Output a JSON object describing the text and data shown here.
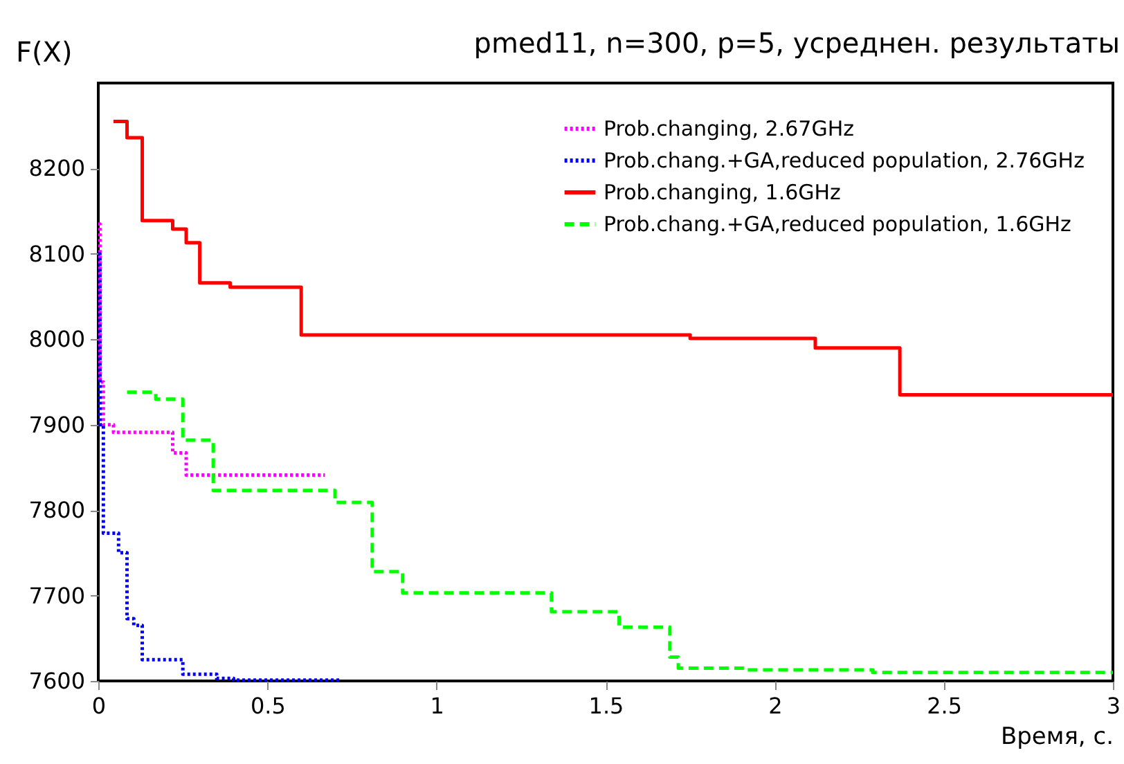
{
  "chart_data": {
    "type": "step",
    "title": "pmed11, n=300, p=5, усреднен. результаты",
    "xlabel": "Время, с.",
    "ylabel": "F(X)",
    "xlim": [
      0,
      3
    ],
    "ylim": [
      7600,
      8300
    ],
    "xticks": [
      0,
      0.5,
      1,
      1.5,
      2,
      2.5,
      3
    ],
    "yticks": [
      7600,
      7700,
      7800,
      7900,
      8000,
      8100,
      8200
    ],
    "grid": false,
    "legend": "top right",
    "series": [
      {
        "name": "Prob.changing, 2.67GHz",
        "color": "#ff00ff",
        "line_style": "dotted",
        "x": [
          0,
          0.005,
          0.015,
          0.045,
          0.22,
          0.26,
          0.67
        ],
        "values": [
          8135,
          7950,
          7900,
          7891,
          7867,
          7841,
          7841
        ]
      },
      {
        "name": "Prob.chang.+GA,reduced population, 2.76GHz",
        "color": "#0000ff",
        "line_style": "dotted",
        "x": [
          0,
          0.005,
          0.015,
          0.06,
          0.085,
          0.105,
          0.13,
          0.25,
          0.35,
          0.4,
          0.72
        ],
        "values": [
          8100,
          7900,
          7773,
          7750,
          7673,
          7665,
          7625,
          7608,
          7603,
          7601,
          7601
        ]
      },
      {
        "name": "Prob.changing, 1.6GHz",
        "color": "#ff0000",
        "line_style": "solid",
        "x": [
          0.045,
          0.085,
          0.13,
          0.22,
          0.26,
          0.3,
          0.39,
          0.6,
          1.75,
          2.12,
          2.37,
          3
        ],
        "values": [
          8255,
          8236,
          8139,
          8129,
          8113,
          8066,
          8061,
          8005,
          8001,
          7990,
          7935,
          7935
        ]
      },
      {
        "name": "Prob.chang.+GA,reduced population, 1.6GHz",
        "color": "#00ff00",
        "line_style": "dashed",
        "x": [
          0.085,
          0.17,
          0.25,
          0.34,
          0.7,
          0.81,
          0.9,
          1.34,
          1.54,
          1.69,
          1.715,
          1.92,
          2.29,
          3
        ],
        "values": [
          7938,
          7930,
          7882,
          7823,
          7809,
          7728,
          7703,
          7681,
          7663,
          7628,
          7615,
          7613,
          7610,
          7610
        ]
      }
    ]
  }
}
